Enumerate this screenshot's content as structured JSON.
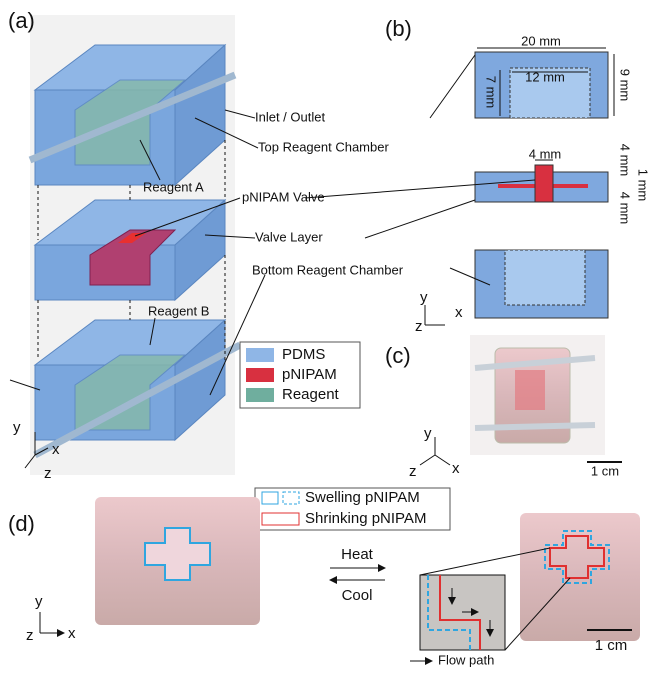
{
  "panels": {
    "a": {
      "label": "(a)",
      "callouts": {
        "inlet_outlet": "Inlet / Outlet",
        "top_chamber": "Top Reagent Chamber",
        "reagent_a": "Reagent A",
        "valve": "pNIPAM Valve",
        "valve_layer": "Valve Layer",
        "bottom_chamber": "Bottom Reagent Chamber",
        "reagent_b": "Reagent B"
      },
      "legend": [
        "PDMS",
        "pNIPAM",
        "Reagent"
      ],
      "axes": {
        "y": "y",
        "x": "x",
        "z": "z"
      }
    },
    "b": {
      "label": "(b)",
      "dimensions": {
        "width": "20 mm",
        "inner_width": "12 mm",
        "inner_height": "7 mm",
        "height": "9 mm",
        "valve_width": "4 mm",
        "valve_top": "4 mm",
        "valve_thickness": "1 mm",
        "valve_bottom": "4 mm"
      },
      "axes": {
        "y": "y",
        "x": "x",
        "z": "z"
      }
    },
    "c": {
      "label": "(c)",
      "scale_bar": "1 cm",
      "axes": {
        "y": "y",
        "x": "x",
        "z": "z"
      }
    },
    "d": {
      "label": "(d)",
      "legend": [
        "Swelling pNIPAM",
        "Shrinking pNIPAM"
      ],
      "heat": "Heat",
      "cool": "Cool",
      "flow_path": "Flow path",
      "scale_bar": "1 cm",
      "axes": {
        "y": "y",
        "x": "x",
        "z": "z"
      }
    }
  }
}
